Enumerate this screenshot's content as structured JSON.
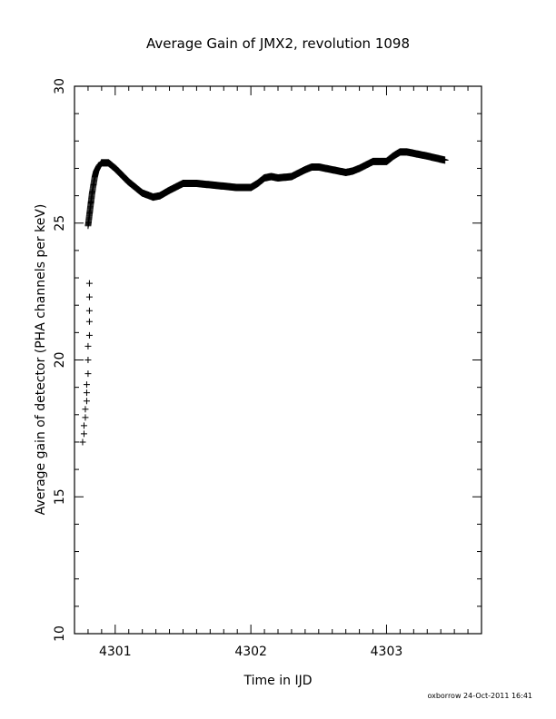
{
  "chart_data": {
    "type": "scatter",
    "title": "Average Gain of JMX2, revolution 1098",
    "xlabel": "Time in IJD",
    "ylabel": "Average gain of detector (PHA channels per keV)",
    "xlim": [
      4300.7,
      4303.7
    ],
    "ylim": [
      10,
      30
    ],
    "xticks": [
      4301,
      4302,
      4303
    ],
    "yticks": [
      10,
      15,
      20,
      25,
      30
    ],
    "grid": false,
    "marker": "+",
    "footer": "oxborrow 24-Oct-2011 16:41",
    "sparse_points": {
      "x": [
        4300.76,
        4300.77,
        4300.77,
        4300.78,
        4300.78,
        4300.79,
        4300.79,
        4300.79,
        4300.8,
        4300.8,
        4300.8,
        4300.81,
        4300.81,
        4300.81,
        4300.81,
        4300.81
      ],
      "y": [
        17.0,
        17.3,
        17.6,
        17.9,
        18.2,
        18.5,
        18.8,
        19.1,
        19.5,
        20.0,
        20.5,
        20.9,
        21.4,
        21.8,
        22.3,
        22.8
      ]
    },
    "dense_curve": {
      "x": [
        4300.8,
        4300.81,
        4300.82,
        4300.83,
        4300.84,
        4300.85,
        4300.86,
        4300.88,
        4300.9,
        4300.95,
        4301.0,
        4301.1,
        4301.2,
        4301.28,
        4301.33,
        4301.4,
        4301.5,
        4301.6,
        4301.7,
        4301.8,
        4301.9,
        4302.0,
        4302.05,
        4302.1,
        4302.15,
        4302.2,
        4302.3,
        4302.4,
        4302.45,
        4302.5,
        4302.6,
        4302.7,
        4302.75,
        4302.8,
        4302.9,
        4303.0,
        4303.05,
        4303.1,
        4303.15,
        4303.2,
        4303.3,
        4303.43
      ],
      "y": [
        24.9,
        25.3,
        25.7,
        26.1,
        26.4,
        26.7,
        26.9,
        27.1,
        27.2,
        27.2,
        27.0,
        26.5,
        26.1,
        25.95,
        26.0,
        26.2,
        26.45,
        26.45,
        26.4,
        26.35,
        26.3,
        26.3,
        26.45,
        26.65,
        26.7,
        26.65,
        26.7,
        26.95,
        27.05,
        27.05,
        26.95,
        26.85,
        26.9,
        27.0,
        27.25,
        27.25,
        27.45,
        27.6,
        27.6,
        27.55,
        27.45,
        27.3
      ]
    }
  }
}
